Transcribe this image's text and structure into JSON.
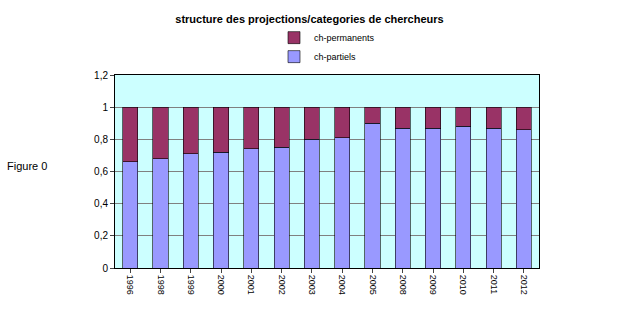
{
  "chart_data": {
    "type": "bar",
    "title": "structure des projections/categories de chercheurs",
    "stacked": true,
    "grid": true,
    "legend": "top",
    "categories": [
      "1996",
      "1998",
      "1999",
      "2000",
      "2001",
      "2002",
      "2003",
      "2004",
      "2005",
      "2008",
      "2009",
      "2010",
      "2011",
      "2012"
    ],
    "series": [
      {
        "name": "ch-partiels",
        "color": "#9999ff",
        "values": [
          0.66,
          0.68,
          0.71,
          0.72,
          0.74,
          0.75,
          0.8,
          0.81,
          0.9,
          0.87,
          0.87,
          0.88,
          0.87,
          0.86
        ]
      },
      {
        "name": "ch-permanents",
        "color": "#993366",
        "values": [
          0.34,
          0.32,
          0.29,
          0.28,
          0.26,
          0.25,
          0.2,
          0.19,
          0.1,
          0.13,
          0.13,
          0.12,
          0.13,
          0.14
        ]
      }
    ],
    "ylim": [
      0,
      1.2
    ],
    "yticks": [
      0,
      {
        "value": 0.2,
        "label": "0,2"
      },
      {
        "value": 0.4,
        "label": "0,4"
      },
      {
        "value": 0.6,
        "label": "0,6"
      },
      {
        "value": 0.8,
        "label": "0,8"
      },
      1,
      {
        "value": 1.2,
        "label": "1,2"
      }
    ],
    "annotations": [
      {
        "text": "Figure 0"
      }
    ]
  }
}
